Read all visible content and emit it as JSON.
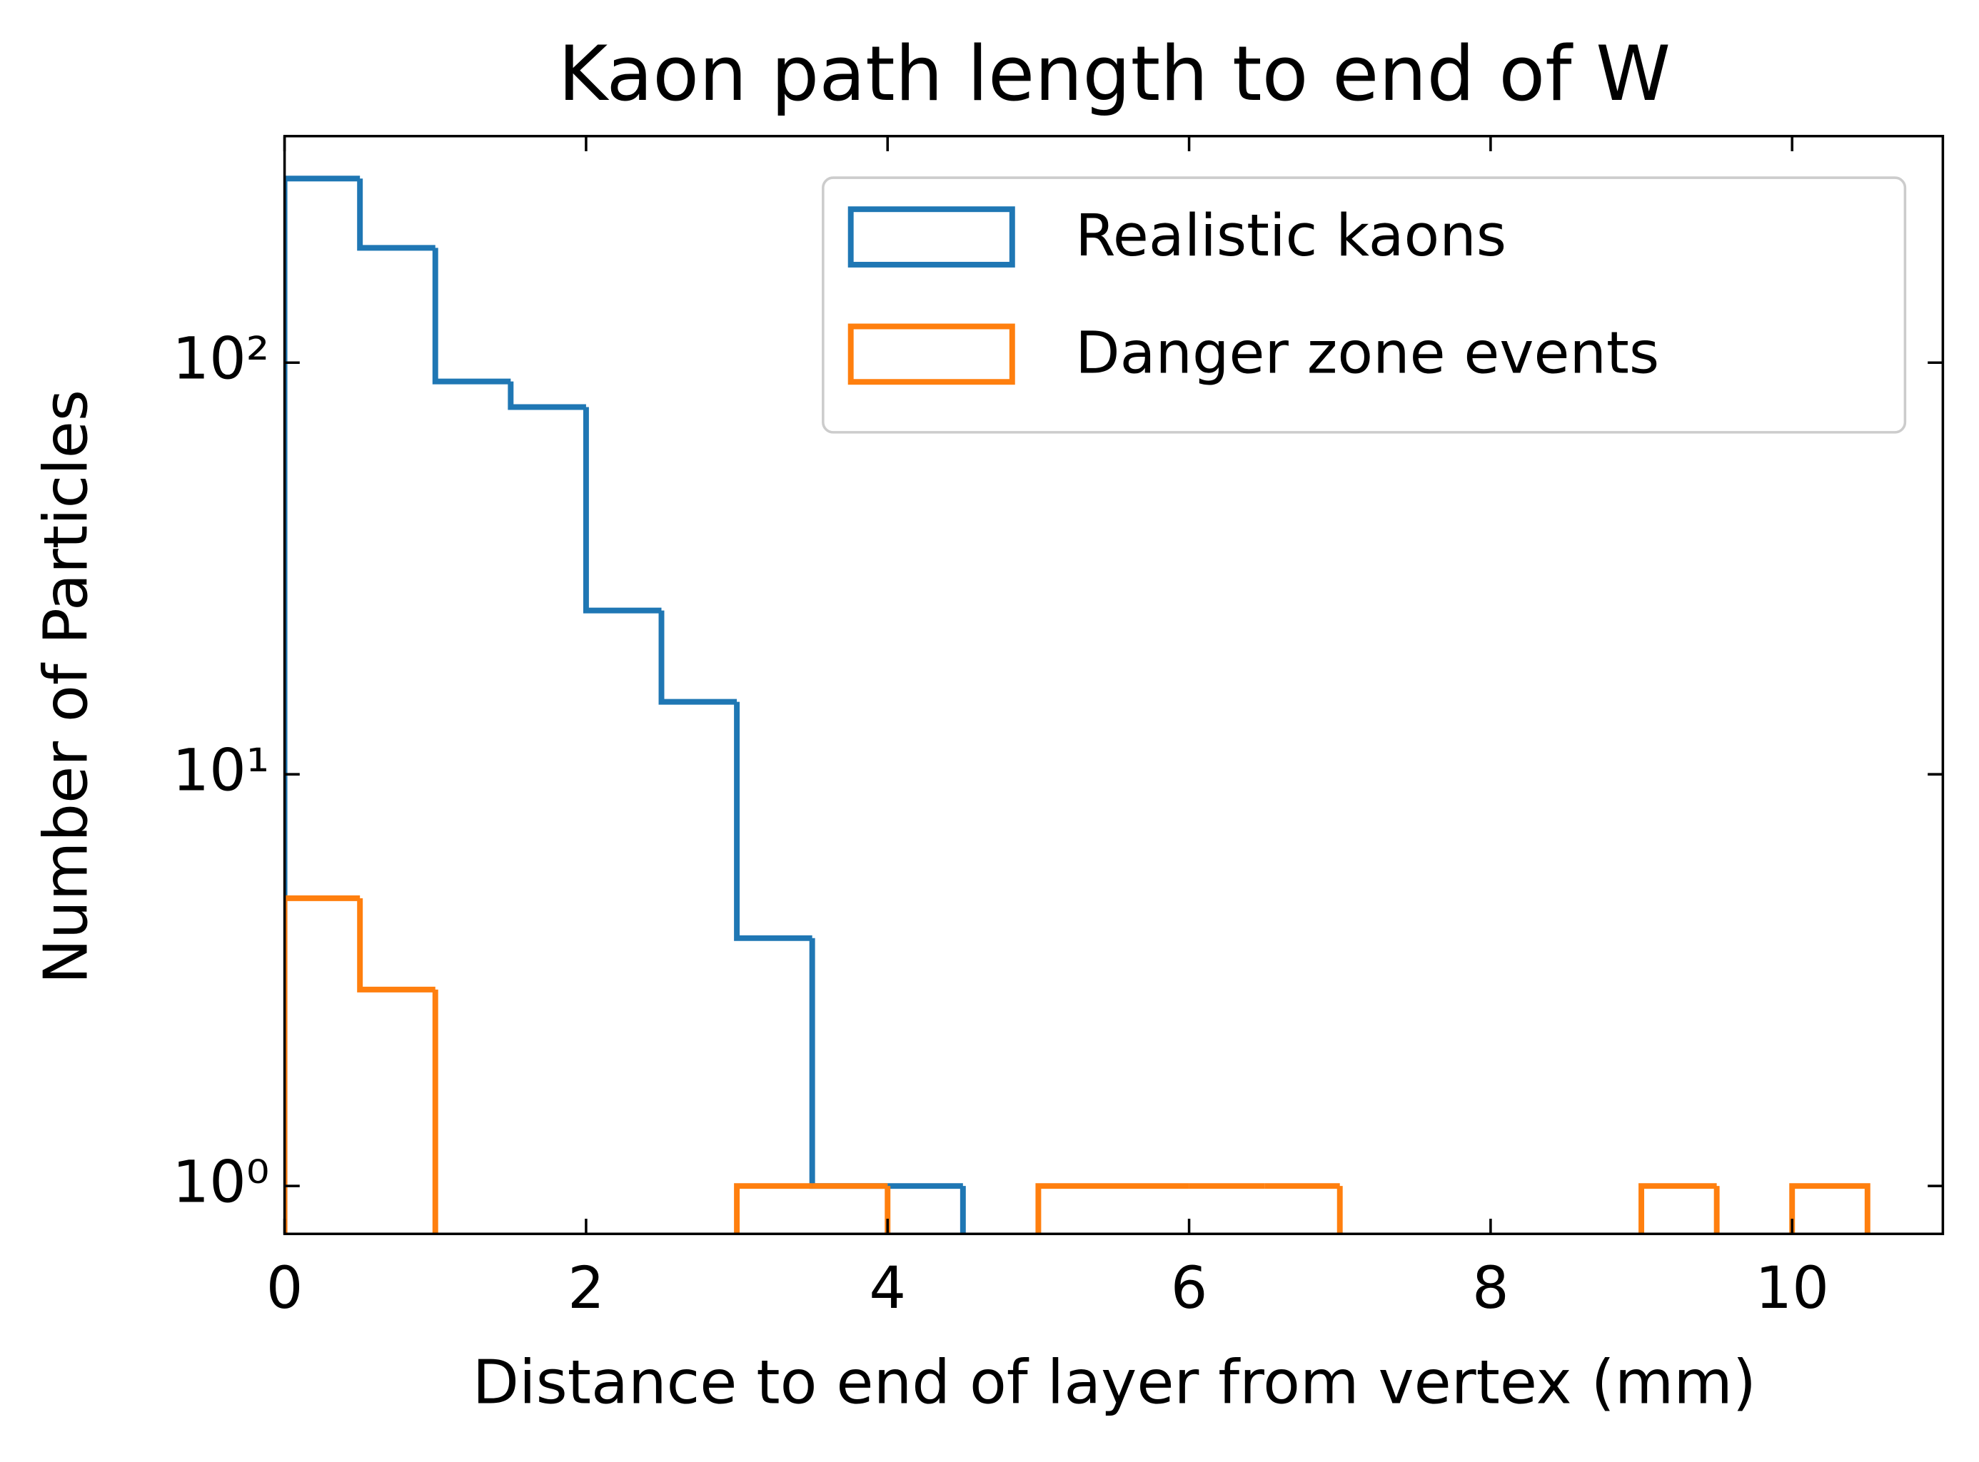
{
  "chart_data": {
    "type": "histogram",
    "title": "Kaon path length to end of W",
    "x_label": "Distance to end of layer from vertex (mm)",
    "y_label": "Number of Particles",
    "bins": [
      0,
      0.5,
      1,
      1.5,
      2,
      2.5,
      3,
      3.5,
      4,
      4.5,
      5,
      5.5,
      6,
      6.5,
      7,
      7.5,
      8,
      8.5,
      9,
      9.5,
      10,
      10.5
    ],
    "series": [
      {
        "name": "Realistic kaons",
        "color": "#1f77b4",
        "values": [
          280,
          190,
          90,
          78,
          25,
          15,
          4,
          1,
          1,
          0,
          0,
          0,
          0,
          0,
          0,
          0,
          0,
          0,
          0,
          0,
          0
        ]
      },
      {
        "name": "Danger zone events",
        "color": "#ff7f0e",
        "values": [
          5,
          3,
          0,
          0,
          0,
          0,
          1,
          1,
          0,
          0,
          1,
          1,
          1,
          1,
          0,
          0,
          0,
          0,
          1,
          0,
          1
        ]
      }
    ],
    "xlim": [
      0,
      11
    ],
    "xticks": [
      0,
      2,
      4,
      6,
      8,
      10
    ],
    "ylim": [
      0.765,
      355
    ],
    "y_scale": "log",
    "yticks": [
      {
        "value": 1,
        "label": "10⁰"
      },
      {
        "value": 10,
        "label": "10¹"
      },
      {
        "value": 100,
        "label": "10²"
      }
    ],
    "legend": "upper right",
    "grid": false
  }
}
